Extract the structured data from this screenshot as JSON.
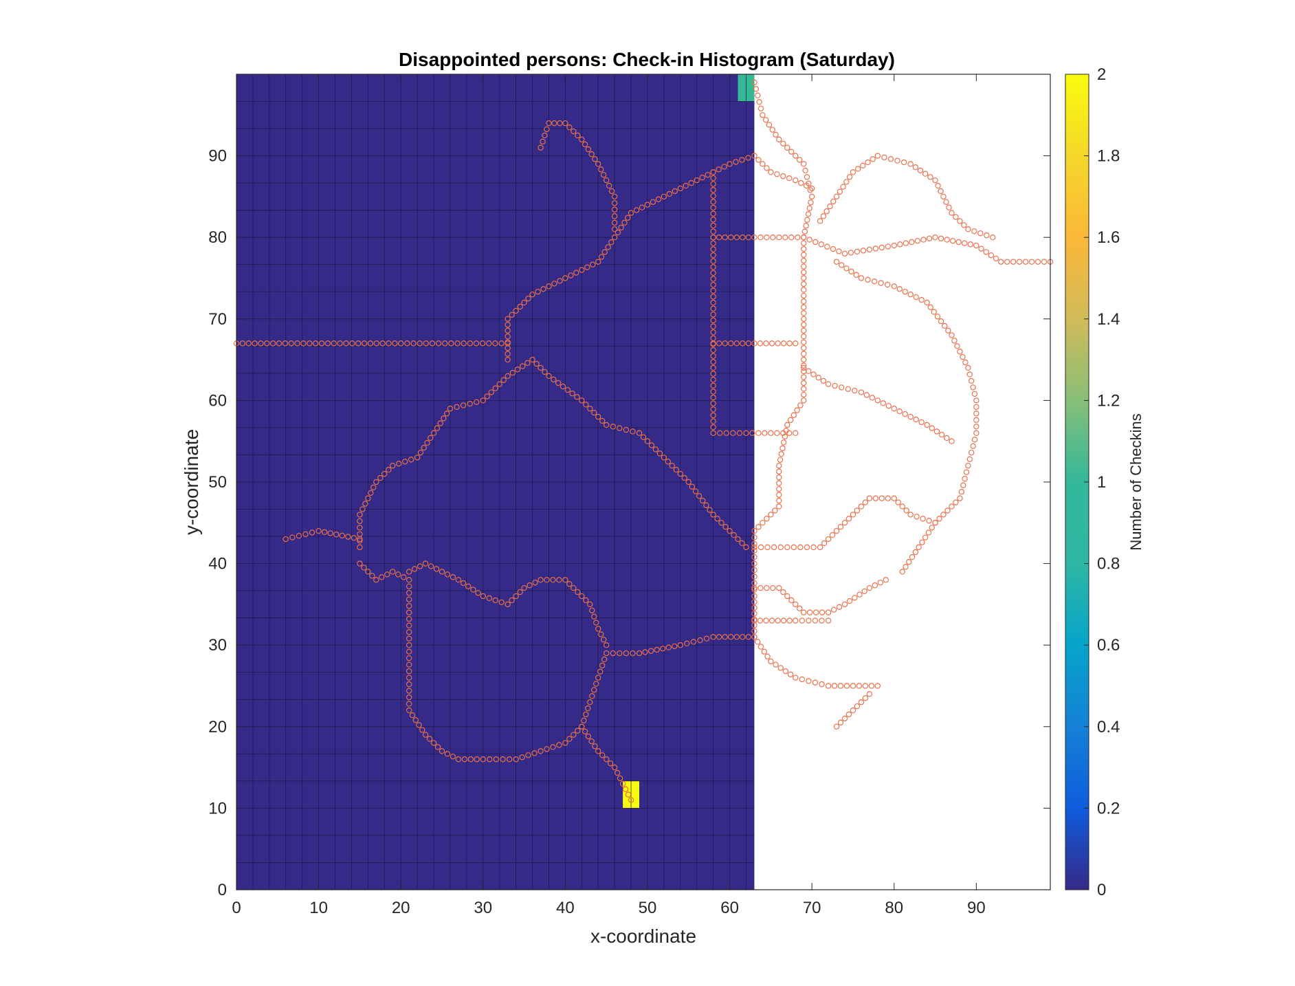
{
  "chart_data": {
    "type": "heatmap",
    "title": "Disappointed persons: Check-in Histogram (Saturday)",
    "xlabel": "x-coordinate",
    "ylabel": "y-coordinate",
    "xlim": [
      0,
      99
    ],
    "ylim": [
      0,
      100
    ],
    "x_ticks": [
      "0",
      "10",
      "20",
      "30",
      "40",
      "50",
      "60",
      "70",
      "80",
      "90"
    ],
    "y_ticks": [
      "0",
      "10",
      "20",
      "30",
      "40",
      "50",
      "60",
      "70",
      "80",
      "90"
    ],
    "histogram": {
      "x_extent": [
        0,
        63
      ],
      "y_extent": [
        0,
        100
      ],
      "bin_width": 2,
      "bin_height": 3.33,
      "default_count": 0,
      "nonzero_bins": [
        {
          "x": [
            47,
            49
          ],
          "y": [
            10,
            13.33
          ],
          "count": 2
        },
        {
          "x": [
            61,
            63
          ],
          "y": [
            96.67,
            100
          ],
          "count": 1
        }
      ]
    },
    "colorbar": {
      "label": "Number of Checkins",
      "range": [
        0,
        2
      ],
      "ticks": [
        "0",
        "0.2",
        "0.4",
        "0.6",
        "0.8",
        "1",
        "1.2",
        "1.4",
        "1.6",
        "1.8",
        "2"
      ],
      "colormap": "parula"
    },
    "overlay": {
      "type": "scatter",
      "marker": "circle",
      "color": "#e8704a",
      "paths": [
        [
          [
            0,
            67
          ],
          [
            20,
            67
          ],
          [
            33,
            67
          ]
        ],
        [
          [
            6,
            43
          ],
          [
            10,
            44
          ],
          [
            15,
            43
          ]
        ],
        [
          [
            15,
            42
          ],
          [
            15,
            46
          ],
          [
            17,
            50
          ],
          [
            19,
            52
          ],
          [
            22,
            53
          ],
          [
            24,
            56
          ],
          [
            26,
            59
          ],
          [
            30,
            60
          ],
          [
            33,
            63
          ],
          [
            36,
            65
          ],
          [
            38,
            63
          ],
          [
            42,
            60
          ],
          [
            45,
            57
          ],
          [
            49,
            56
          ],
          [
            52,
            53
          ],
          [
            55,
            50
          ],
          [
            58,
            46
          ],
          [
            62,
            42
          ]
        ],
        [
          [
            33,
            65
          ],
          [
            33,
            70
          ],
          [
            36,
            73
          ],
          [
            40,
            75
          ],
          [
            44,
            77
          ],
          [
            46,
            80
          ],
          [
            48,
            83
          ],
          [
            52,
            85
          ],
          [
            56,
            87
          ],
          [
            60,
            89
          ],
          [
            63,
            90
          ],
          [
            65,
            88
          ],
          [
            68,
            87
          ],
          [
            70,
            86
          ]
        ],
        [
          [
            46,
            81
          ],
          [
            46,
            85
          ],
          [
            44,
            89
          ],
          [
            42,
            92
          ],
          [
            40,
            94
          ],
          [
            38,
            94
          ],
          [
            37,
            91
          ]
        ],
        [
          [
            58,
            88
          ],
          [
            58,
            80
          ],
          [
            58,
            72
          ],
          [
            58,
            64
          ],
          [
            58,
            56
          ],
          [
            62,
            56
          ],
          [
            68,
            56
          ]
        ],
        [
          [
            58,
            67
          ],
          [
            63,
            67
          ],
          [
            68,
            67
          ]
        ],
        [
          [
            58,
            80
          ],
          [
            63,
            80
          ],
          [
            69,
            80
          ],
          [
            74,
            78
          ],
          [
            80,
            79
          ],
          [
            85,
            80
          ],
          [
            90,
            79
          ],
          [
            93,
            77
          ],
          [
            99,
            77
          ]
        ],
        [
          [
            63,
            99
          ],
          [
            64,
            95
          ],
          [
            66,
            92
          ],
          [
            69,
            89
          ],
          [
            70,
            85
          ],
          [
            69,
            80
          ],
          [
            69,
            75
          ],
          [
            69,
            70
          ],
          [
            69,
            65
          ],
          [
            69,
            60
          ],
          [
            67,
            57
          ],
          [
            66,
            52
          ],
          [
            66,
            47
          ],
          [
            63,
            44
          ],
          [
            63,
            40
          ],
          [
            63,
            36
          ],
          [
            63,
            31
          ],
          [
            65,
            28
          ],
          [
            68,
            26
          ],
          [
            72,
            25
          ],
          [
            78,
            25
          ]
        ],
        [
          [
            73,
            20
          ],
          [
            75,
            22
          ],
          [
            77,
            24
          ]
        ],
        [
          [
            71,
            82
          ],
          [
            73,
            85
          ],
          [
            75,
            88
          ],
          [
            78,
            90
          ],
          [
            82,
            89
          ],
          [
            85,
            87
          ],
          [
            87,
            83
          ],
          [
            89,
            81
          ],
          [
            92,
            80
          ]
        ],
        [
          [
            73,
            77
          ],
          [
            76,
            75
          ],
          [
            80,
            74
          ],
          [
            84,
            72
          ],
          [
            87,
            68
          ],
          [
            89,
            64
          ],
          [
            90,
            60
          ],
          [
            90,
            56
          ],
          [
            89,
            52
          ],
          [
            88,
            48
          ],
          [
            85,
            45
          ],
          [
            83,
            42
          ],
          [
            81,
            39
          ]
        ],
        [
          [
            69,
            64
          ],
          [
            72,
            62
          ],
          [
            76,
            61
          ],
          [
            80,
            59
          ],
          [
            84,
            57
          ],
          [
            87,
            55
          ]
        ],
        [
          [
            63,
            42
          ],
          [
            67,
            42
          ],
          [
            71,
            42
          ],
          [
            73,
            44
          ],
          [
            75,
            46
          ],
          [
            77,
            48
          ],
          [
            80,
            48
          ],
          [
            82,
            46
          ],
          [
            85,
            45
          ]
        ],
        [
          [
            63,
            37
          ],
          [
            66,
            37
          ],
          [
            69,
            34
          ],
          [
            72,
            34
          ],
          [
            74,
            35
          ],
          [
            77,
            37
          ],
          [
            79,
            38
          ]
        ],
        [
          [
            63,
            33
          ],
          [
            68,
            33
          ],
          [
            72,
            33
          ]
        ],
        [
          [
            63,
            31
          ],
          [
            58,
            31
          ],
          [
            54,
            30
          ],
          [
            49,
            29
          ],
          [
            45,
            29
          ],
          [
            44,
            26
          ],
          [
            43,
            23
          ],
          [
            42,
            20
          ],
          [
            40,
            18
          ],
          [
            37,
            17
          ],
          [
            34,
            16
          ],
          [
            30,
            16
          ],
          [
            27,
            16
          ],
          [
            25,
            17
          ],
          [
            23,
            19
          ],
          [
            21,
            22
          ],
          [
            21,
            26
          ],
          [
            21,
            30
          ],
          [
            21,
            34
          ],
          [
            21,
            38
          ],
          [
            19,
            39
          ],
          [
            17,
            38
          ],
          [
            15,
            40
          ]
        ],
        [
          [
            21,
            39
          ],
          [
            23,
            40
          ],
          [
            25,
            39
          ],
          [
            27,
            38
          ],
          [
            30,
            36
          ],
          [
            33,
            35
          ],
          [
            35,
            37
          ],
          [
            37,
            38
          ],
          [
            40,
            38
          ],
          [
            43,
            35
          ],
          [
            44,
            32
          ],
          [
            45,
            30
          ]
        ],
        [
          [
            42,
            20
          ],
          [
            44,
            17
          ],
          [
            46,
            15
          ],
          [
            47,
            13
          ],
          [
            48,
            11
          ]
        ]
      ]
    }
  }
}
